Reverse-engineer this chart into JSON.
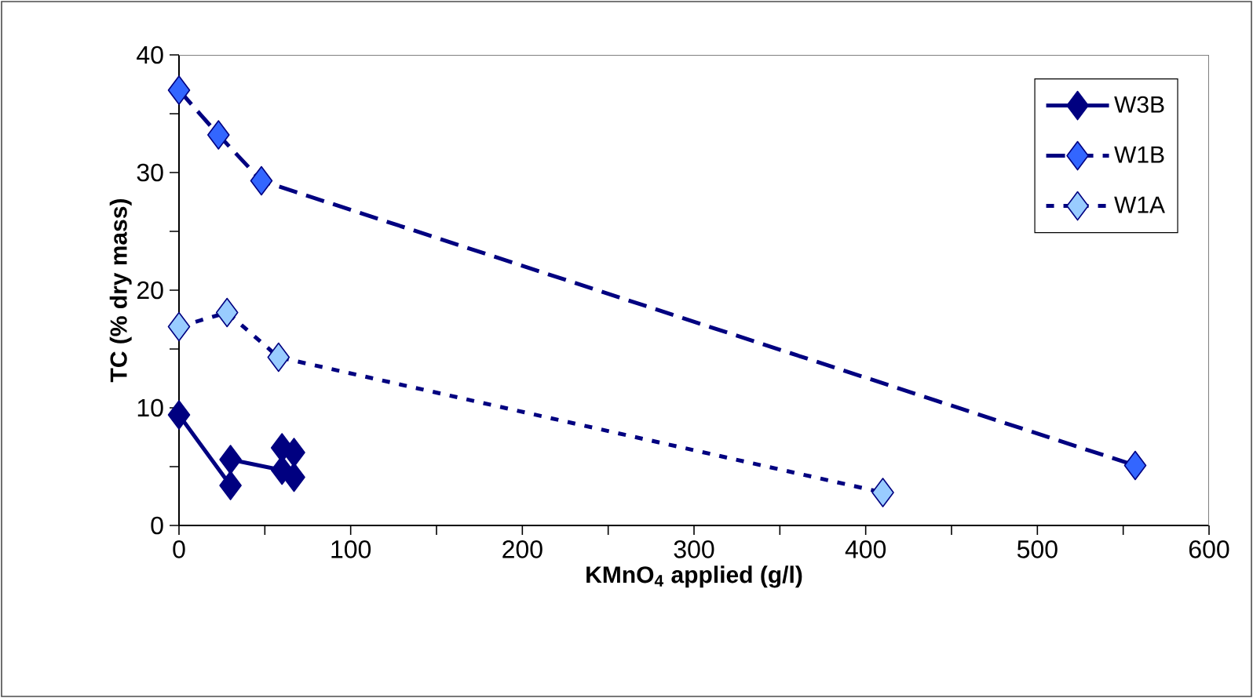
{
  "chart_data": {
    "type": "line",
    "xlabel": "KMnO$_{4}$ applied (g/l)",
    "ylabel": "TC (% dry mass)",
    "xlim": [
      0,
      600
    ],
    "ylim": [
      0,
      40
    ],
    "xticks": [
      0,
      {
        "value": 50,
        "label": null
      },
      100,
      {
        "value": 150,
        "label": null
      },
      200,
      {
        "value": 250,
        "label": null
      },
      300,
      {
        "value": 350,
        "label": null
      },
      400,
      {
        "value": 450,
        "label": null
      },
      500,
      {
        "value": 550,
        "label": null
      },
      600
    ],
    "yticks": [
      0,
      {
        "value": 5,
        "label": null
      },
      10,
      {
        "value": 15,
        "label": null
      },
      20,
      {
        "value": 25,
        "label": null
      },
      30,
      {
        "value": 35,
        "label": null
      },
      40
    ],
    "grid": false,
    "legend": "top right",
    "marker": "diamond",
    "series": [
      {
        "name": "W3B",
        "color": "#000080",
        "line_style": "solid",
        "x": [
          0,
          30,
          30,
          60,
          60,
          67,
          67
        ],
        "values": [
          9.4,
          3.4,
          5.6,
          4.7,
          6.6,
          6.2,
          4.1
        ]
      },
      {
        "name": "W1B",
        "color": "#3366ff",
        "line_style": "dashed",
        "x": [
          0,
          23,
          48,
          557
        ],
        "values": [
          37,
          33.2,
          29.3,
          5.1
        ]
      },
      {
        "name": "W1A",
        "color": "#99ccff",
        "line_style": "dotted",
        "x": [
          0,
          28,
          58,
          410
        ],
        "values": [
          16.9,
          18.1,
          14.3,
          2.8
        ]
      }
    ]
  }
}
